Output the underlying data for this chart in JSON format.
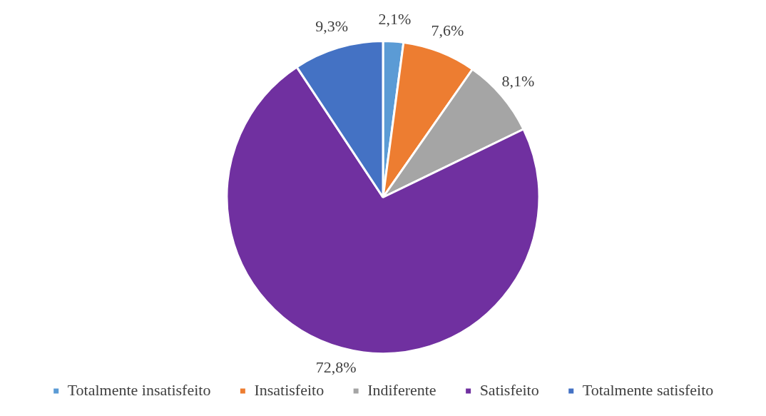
{
  "chart_data": {
    "type": "pie",
    "categories": [
      "Totalmente insatisfeito",
      "Insatisfeito",
      "Indiferente",
      "Satisfeito",
      "Totalmente satisfeito"
    ],
    "values": [
      2.1,
      7.6,
      8.1,
      72.8,
      9.3
    ],
    "colors": [
      "#5b9bd5",
      "#ed7d31",
      "#a5a5a5",
      "#7030a0",
      "#4472c4"
    ],
    "value_labels": [
      "2,1%",
      "7,6%",
      "8,1%",
      "72,8%",
      "9,3%"
    ],
    "legend": "bottom"
  }
}
